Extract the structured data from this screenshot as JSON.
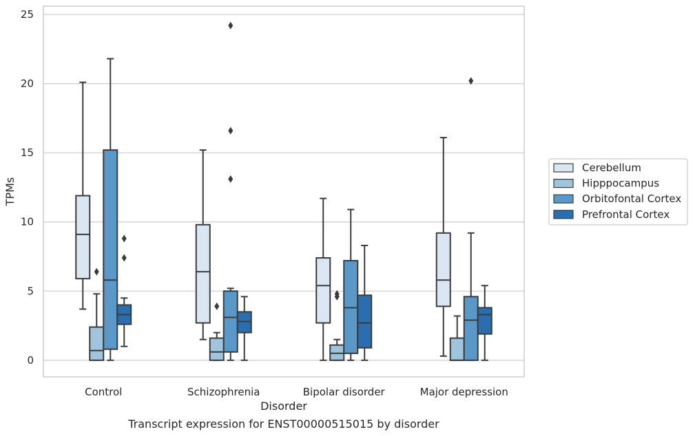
{
  "chart_data": {
    "type": "boxplot",
    "xlabel": "Disorder",
    "ylabel": "TPMs",
    "caption": "Transcript expression for ENST00000515015 by disorder",
    "ylim": [
      -1.2,
      25.6
    ],
    "yticks": [
      0,
      5,
      10,
      15,
      20,
      25
    ],
    "grid": "horizontal",
    "legend_position": "right",
    "categories": [
      "Control",
      "Schizophrenia",
      "Bipolar disorder",
      "Major depression"
    ],
    "series": [
      {
        "name": "Cerebellum",
        "color": "#dbe6f3",
        "boxes": [
          {
            "whisker_low": 3.7,
            "q1": 5.9,
            "median": 9.1,
            "q3": 11.9,
            "whisker_high": 20.1,
            "outliers": []
          },
          {
            "whisker_low": 1.5,
            "q1": 2.7,
            "median": 6.4,
            "q3": 9.8,
            "whisker_high": 15.2,
            "outliers": []
          },
          {
            "whisker_low": 0.0,
            "q1": 2.7,
            "median": 5.4,
            "q3": 7.4,
            "whisker_high": 11.7,
            "outliers": []
          },
          {
            "whisker_low": 0.3,
            "q1": 3.9,
            "median": 5.8,
            "q3": 9.2,
            "whisker_high": 16.1,
            "outliers": []
          }
        ]
      },
      {
        "name": "Hipppocampus",
        "color": "#a0c4de",
        "boxes": [
          {
            "whisker_low": 0.0,
            "q1": 0.0,
            "median": 0.7,
            "q3": 2.4,
            "whisker_high": 4.8,
            "outliers": [
              6.4
            ]
          },
          {
            "whisker_low": 0.0,
            "q1": 0.0,
            "median": 0.6,
            "q3": 1.6,
            "whisker_high": 2.0,
            "outliers": [
              3.9
            ]
          },
          {
            "whisker_low": 0.0,
            "q1": 0.0,
            "median": 0.5,
            "q3": 1.1,
            "whisker_high": 1.5,
            "outliers": [
              4.6,
              4.8
            ]
          },
          {
            "whisker_low": 0.0,
            "q1": 0.0,
            "median": 0.0,
            "q3": 1.6,
            "whisker_high": 3.2,
            "outliers": []
          }
        ]
      },
      {
        "name": "Orbitofontal Cortex",
        "color": "#5a98c8",
        "boxes": [
          {
            "whisker_low": 0.0,
            "q1": 0.8,
            "median": 5.8,
            "q3": 15.2,
            "whisker_high": 21.8,
            "outliers": []
          },
          {
            "whisker_low": 0.0,
            "q1": 0.6,
            "median": 3.1,
            "q3": 5.0,
            "whisker_high": 5.2,
            "outliers": [
              13.1,
              16.6,
              24.2
            ]
          },
          {
            "whisker_low": 0.0,
            "q1": 0.5,
            "median": 3.8,
            "q3": 7.2,
            "whisker_high": 10.9,
            "outliers": []
          },
          {
            "whisker_low": 0.0,
            "q1": 0.0,
            "median": 2.9,
            "q3": 4.6,
            "whisker_high": 9.2,
            "outliers": [
              20.2
            ]
          }
        ]
      },
      {
        "name": "Prefrontal Cortex",
        "color": "#2a6eaf",
        "boxes": [
          {
            "whisker_low": 1.0,
            "q1": 2.6,
            "median": 3.3,
            "q3": 4.0,
            "whisker_high": 4.5,
            "outliers": [
              7.4,
              8.8
            ]
          },
          {
            "whisker_low": 0.0,
            "q1": 2.0,
            "median": 2.8,
            "q3": 3.5,
            "whisker_high": 4.6,
            "outliers": []
          },
          {
            "whisker_low": 0.0,
            "q1": 0.9,
            "median": 2.7,
            "q3": 4.7,
            "whisker_high": 8.3,
            "outliers": []
          },
          {
            "whisker_low": 0.0,
            "q1": 1.9,
            "median": 3.3,
            "q3": 3.8,
            "whisker_high": 5.4,
            "outliers": []
          }
        ]
      }
    ]
  }
}
